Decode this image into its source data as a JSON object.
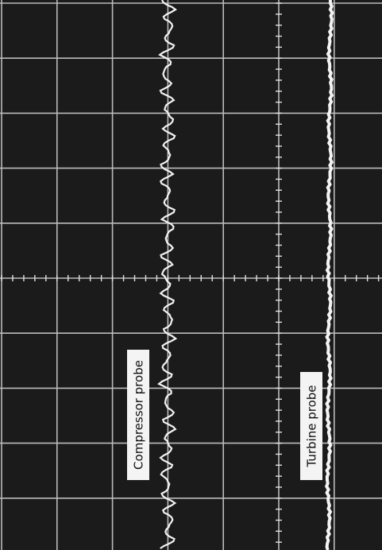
{
  "traces": [
    {
      "label": "Compressor probe"
    },
    {
      "label": "Turbine probe"
    }
  ]
}
